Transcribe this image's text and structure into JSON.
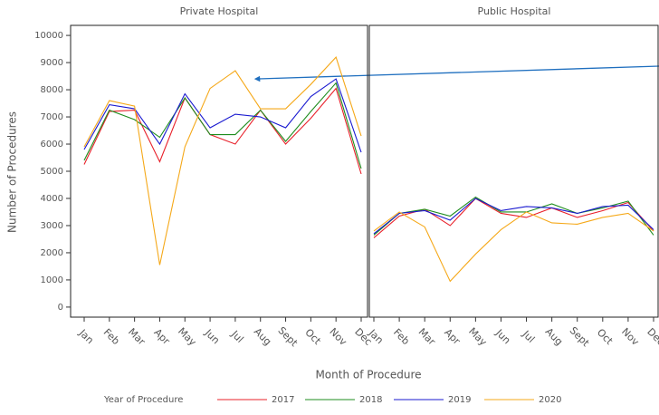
{
  "figure": {
    "y_label": "Number of Procedures",
    "x_label": "Month of Procedure",
    "legend_title": "Year of Procedure"
  },
  "chart_data": [
    {
      "type": "line",
      "title": "Private Hospital",
      "categories": [
        "Jan",
        "Feb",
        "Mar",
        "Apr",
        "May",
        "Jun",
        "Jul",
        "Aug",
        "Sept",
        "Oct",
        "Nov",
        "Dec"
      ],
      "ylim": [
        -370,
        10370
      ],
      "yticks": [
        0,
        1000,
        2000,
        3000,
        4000,
        5000,
        6000,
        7000,
        8000,
        9000,
        10000
      ],
      "series": [
        {
          "name": "2017",
          "color": "#e8202a",
          "values": [
            5250,
            7200,
            7250,
            5350,
            7700,
            6350,
            6000,
            7250,
            6000,
            6950,
            8050,
            4900
          ]
        },
        {
          "name": "2018",
          "color": "#1e8c1e",
          "values": [
            5400,
            7250,
            6900,
            6250,
            7700,
            6350,
            6350,
            7250,
            6100,
            7200,
            8250,
            5100
          ]
        },
        {
          "name": "2019",
          "color": "#1a1ad0",
          "values": [
            5800,
            7450,
            7300,
            6000,
            7850,
            6600,
            7100,
            7000,
            6600,
            7750,
            8400,
            5700
          ]
        },
        {
          "name": "2020",
          "color": "#f5a818",
          "values": [
            5900,
            7600,
            7400,
            1550,
            5900,
            8050,
            8700,
            7300,
            7300,
            8200,
            9200,
            6300
          ]
        }
      ]
    },
    {
      "type": "line",
      "title": "Public Hospital",
      "categories": [
        "Jan",
        "Feb",
        "Mar",
        "Apr",
        "May",
        "Jun",
        "Jul",
        "Aug",
        "Sept",
        "Oct",
        "Nov",
        "Dec"
      ],
      "ylim": [
        -370,
        10370
      ],
      "series": [
        {
          "name": "2017",
          "color": "#e8202a",
          "values": [
            2550,
            3350,
            3600,
            3000,
            4000,
            3450,
            3300,
            3650,
            3300,
            3550,
            3850,
            2800
          ]
        },
        {
          "name": "2018",
          "color": "#1e8c1e",
          "values": [
            2650,
            3450,
            3600,
            3350,
            4050,
            3500,
            3500,
            3800,
            3450,
            3650,
            3900,
            2650
          ]
        },
        {
          "name": "2019",
          "color": "#1a1ad0",
          "values": [
            2700,
            3450,
            3550,
            3200,
            4000,
            3550,
            3700,
            3650,
            3450,
            3700,
            3750,
            2850
          ]
        },
        {
          "name": "2020",
          "color": "#f5a818",
          "values": [
            2800,
            3500,
            2950,
            950,
            1950,
            2850,
            3500,
            3100,
            3050,
            3300,
            3450,
            2800
          ]
        }
      ]
    }
  ]
}
